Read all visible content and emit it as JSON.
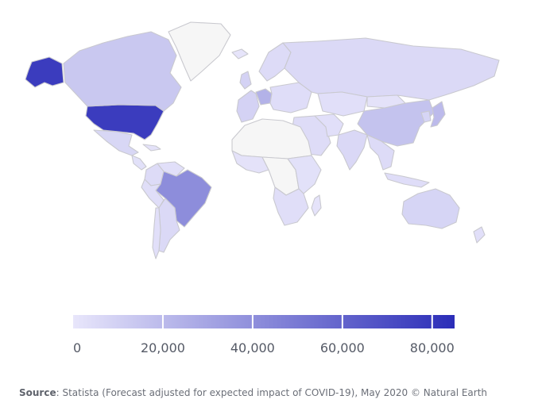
{
  "chart_data": {
    "type": "choropleth",
    "legend": {
      "min": 0,
      "max": 85000,
      "ticks": [
        0,
        20000,
        40000,
        60000,
        80000
      ],
      "tick_labels": [
        "0",
        "20,000",
        "40,000",
        "60,000",
        "80,000"
      ],
      "color_low": "#e8e6fb",
      "color_high": "#2b2db8",
      "placement": "bottom"
    },
    "regions": [
      {
        "name": "United States",
        "value": 78000
      },
      {
        "name": "Alaska",
        "value": 78000
      },
      {
        "name": "Canada",
        "value": 14000
      },
      {
        "name": "Greenland",
        "value": null
      },
      {
        "name": "Mexico",
        "value": 7000
      },
      {
        "name": "Central America",
        "value": 2500
      },
      {
        "name": "Caribbean",
        "value": 2000
      },
      {
        "name": "Brazil",
        "value": 41000
      },
      {
        "name": "Colombia",
        "value": 5000
      },
      {
        "name": "Venezuela",
        "value": 3000
      },
      {
        "name": "Peru",
        "value": 3500
      },
      {
        "name": "Argentina",
        "value": 6000
      },
      {
        "name": "Chile",
        "value": 3000
      },
      {
        "name": "Western Europe",
        "value": 9000
      },
      {
        "name": "Germany",
        "value": 24000
      },
      {
        "name": "Scandinavia",
        "value": 5000
      },
      {
        "name": "Eastern Europe",
        "value": 4000
      },
      {
        "name": "Iceland",
        "value": 1000
      },
      {
        "name": "Russia",
        "value": 6000
      },
      {
        "name": "Kazakhstan",
        "value": 3000
      },
      {
        "name": "Middle East",
        "value": 4500
      },
      {
        "name": "Iran",
        "value": 3000
      },
      {
        "name": "India",
        "value": 6500
      },
      {
        "name": "China",
        "value": 16000
      },
      {
        "name": "Mongolia",
        "value": 2000
      },
      {
        "name": "Japan",
        "value": 20000
      },
      {
        "name": "Korea",
        "value": 8000
      },
      {
        "name": "Southeast Asia",
        "value": 5000
      },
      {
        "name": "Indonesia",
        "value": 4000
      },
      {
        "name": "North Africa",
        "value": null
      },
      {
        "name": "West Africa",
        "value": 2000
      },
      {
        "name": "Central Africa",
        "value": null
      },
      {
        "name": "East Africa",
        "value": 2500
      },
      {
        "name": "Southern Africa",
        "value": 3500
      },
      {
        "name": "Madagascar",
        "value": 1500
      },
      {
        "name": "Australia",
        "value": 8000
      },
      {
        "name": "New Zealand",
        "value": 3000
      },
      {
        "name": "United Kingdom",
        "value": 9000
      }
    ]
  },
  "source": {
    "label": "Source",
    "text": ": Statista (Forecast adjusted for expected impact of COVID-19), May 2020 © Natural Earth"
  }
}
